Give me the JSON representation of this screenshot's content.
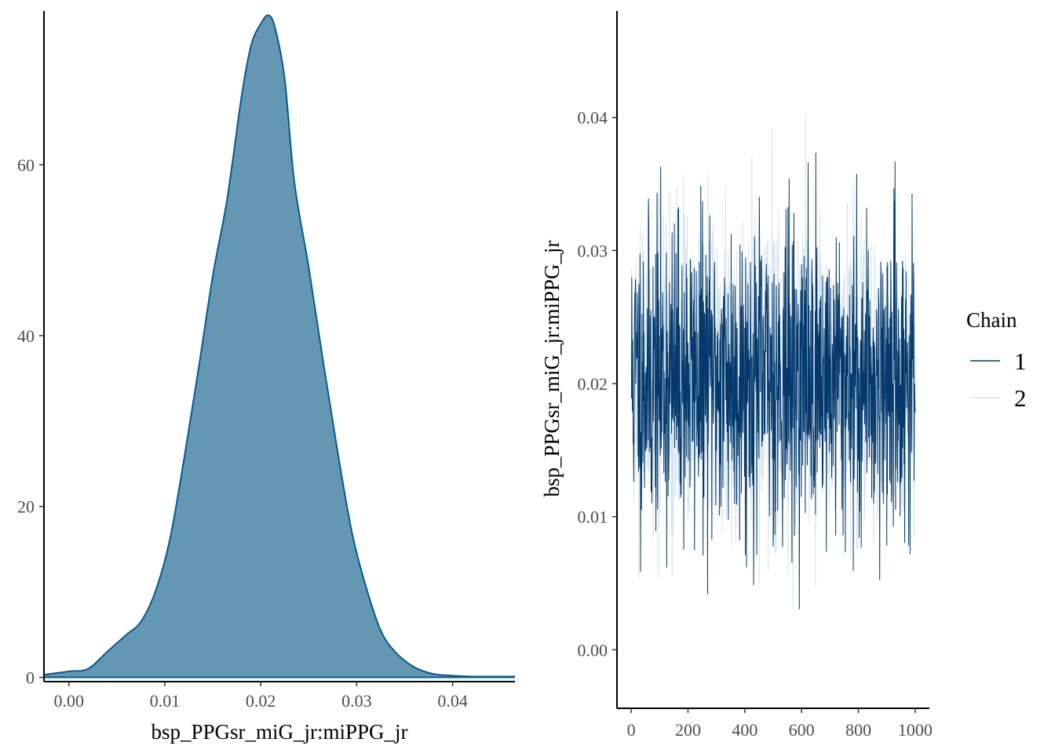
{
  "chart_data": [
    {
      "type": "area",
      "panel": "density",
      "xlabel": "bsp_PPGsr_miG_jr:miPPG_jr",
      "ylabel": "",
      "xlim": [
        -0.0026,
        0.0465
      ],
      "ylim": [
        -0.5,
        78
      ],
      "xticks": [
        0.0,
        0.01,
        0.02,
        0.03,
        0.04
      ],
      "xtick_labels": [
        "0.00",
        "0.01",
        "0.02",
        "0.03",
        "0.04"
      ],
      "yticks": [
        0,
        20,
        40,
        60
      ],
      "ytick_labels": [
        "0",
        "20",
        "40",
        "60"
      ],
      "fill_color": "#6497b1",
      "line_color": "#005b96",
      "x": [
        -0.0026,
        0.0,
        0.002,
        0.004,
        0.006,
        0.0075,
        0.009,
        0.0105,
        0.012,
        0.0135,
        0.015,
        0.0165,
        0.018,
        0.019,
        0.02,
        0.0208,
        0.0215,
        0.0225,
        0.0235,
        0.025,
        0.0265,
        0.028,
        0.0295,
        0.031,
        0.0325,
        0.034,
        0.036,
        0.038,
        0.04,
        0.042,
        0.0465
      ],
      "y": [
        0.3,
        0.7,
        1.0,
        3.0,
        5.0,
        6.5,
        10.0,
        16.0,
        25.5,
        36.0,
        47.0,
        56.0,
        68.0,
        74.0,
        76.5,
        77.5,
        76.0,
        70.0,
        58.0,
        48.0,
        37.0,
        26.5,
        17.0,
        10.5,
        5.5,
        3.0,
        1.2,
        0.4,
        0.2,
        0.1,
        0.1
      ],
      "grid": false
    },
    {
      "type": "line",
      "panel": "trace",
      "xlabel": "",
      "ylabel": "bsp_PPGsr_miG_jr:miPPG_jr",
      "xlim": [
        -50,
        1050
      ],
      "ylim": [
        -0.0044,
        0.048
      ],
      "xticks": [
        0,
        200,
        400,
        600,
        800,
        1000
      ],
      "xtick_labels": [
        "0",
        "200",
        "400",
        "600",
        "800",
        "1000"
      ],
      "yticks": [
        0.0,
        0.01,
        0.02,
        0.03,
        0.04
      ],
      "ytick_labels": [
        "0.00",
        "0.01",
        "0.02",
        "0.03",
        "0.04"
      ],
      "iterations": 1000,
      "series": [
        {
          "name": "1",
          "color": "#03396c",
          "mean": 0.0205,
          "sd": 0.0058,
          "seed": 11
        },
        {
          "name": "2",
          "color": "#d1e1ec",
          "mean": 0.0205,
          "sd": 0.0058,
          "seed": 29
        }
      ],
      "grid": false,
      "legend": {
        "title": "Chain",
        "position": "right",
        "labels": [
          "1",
          "2"
        ]
      }
    }
  ]
}
